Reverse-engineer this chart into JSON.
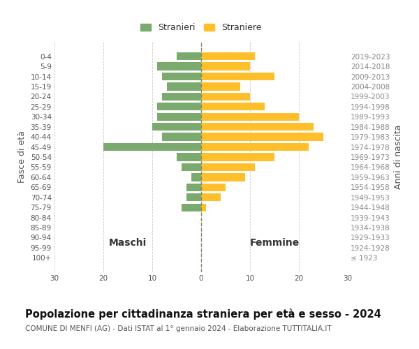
{
  "age_groups": [
    "100+",
    "95-99",
    "90-94",
    "85-89",
    "80-84",
    "75-79",
    "70-74",
    "65-69",
    "60-64",
    "55-59",
    "50-54",
    "45-49",
    "40-44",
    "35-39",
    "30-34",
    "25-29",
    "20-24",
    "15-19",
    "10-14",
    "5-9",
    "0-4"
  ],
  "birth_years": [
    "≤ 1923",
    "1924-1928",
    "1929-1933",
    "1934-1938",
    "1939-1943",
    "1944-1948",
    "1949-1953",
    "1954-1958",
    "1959-1963",
    "1964-1968",
    "1969-1973",
    "1974-1978",
    "1979-1983",
    "1984-1988",
    "1989-1993",
    "1994-1998",
    "1999-2003",
    "2004-2008",
    "2009-2013",
    "2014-2018",
    "2019-2023"
  ],
  "maschi": [
    0,
    0,
    0,
    0,
    0,
    4,
    3,
    3,
    2,
    4,
    5,
    20,
    8,
    10,
    9,
    9,
    8,
    7,
    8,
    9,
    5
  ],
  "femmine": [
    0,
    0,
    0,
    0,
    0,
    1,
    4,
    5,
    9,
    11,
    15,
    22,
    25,
    23,
    20,
    13,
    10,
    8,
    15,
    10,
    11
  ],
  "male_color": "#7aaa6e",
  "female_color": "#ffbf2b",
  "title": "Popolazione per cittadinanza straniera per età e sesso - 2024",
  "subtitle": "COMUNE DI MENFI (AG) - Dati ISTAT al 1° gennaio 2024 - Elaborazione TUTTITALIA.IT",
  "xlabel_left": "Maschi",
  "xlabel_right": "Femmine",
  "ylabel_left": "Fasce di età",
  "ylabel_right": "Anni di nascita",
  "legend_male": "Stranieri",
  "legend_female": "Straniere",
  "xlim": 30,
  "background_color": "#ffffff",
  "grid_color": "#cccccc",
  "dashed_line_color": "#888855",
  "title_fontsize": 10.5,
  "subtitle_fontsize": 7.5,
  "label_fontsize": 9,
  "tick_fontsize": 7.5
}
